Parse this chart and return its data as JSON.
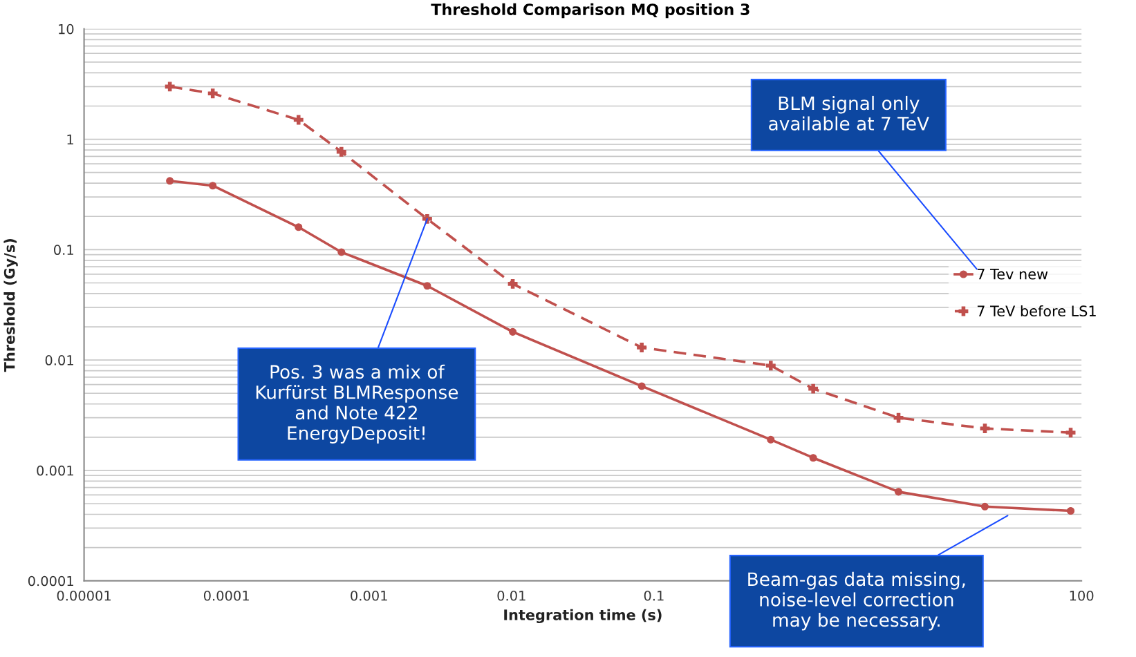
{
  "chart_data": {
    "type": "line",
    "title": "Threshold Comparison MQ position 3",
    "xlabel": "Integration time (s)",
    "ylabel": "Threshold (Gy/s)",
    "x": [
      4e-05,
      8e-05,
      0.00032,
      0.00064,
      0.00256,
      0.0102,
      0.082,
      0.66,
      1.31,
      5.2,
      21,
      84
    ],
    "series": [
      {
        "name": "7 Tev new",
        "color": "#c0504d",
        "marker": "circle",
        "line_style": "solid",
        "values": [
          0.42,
          0.38,
          0.16,
          0.095,
          0.047,
          0.018,
          0.0058,
          0.0019,
          0.0013,
          0.00064,
          0.00047,
          0.00043
        ]
      },
      {
        "name": "7 TeV before LS1",
        "color": "#c0504d",
        "marker": "cross",
        "line_style": "dashed",
        "values": [
          3.0,
          2.6,
          1.5,
          0.77,
          0.19,
          0.049,
          0.013,
          0.0089,
          0.0055,
          0.003,
          0.0024,
          0.0022
        ]
      }
    ],
    "log": "xy",
    "xlim": [
      1e-05,
      100
    ],
    "ylim": [
      0.0001,
      10
    ],
    "xticks": [
      {
        "value": 1e-05,
        "label": "0.00001"
      },
      {
        "value": 0.0001,
        "label": "0.0001"
      },
      {
        "value": 0.001,
        "label": "0.001"
      },
      {
        "value": 0.01,
        "label": "0.01"
      },
      {
        "value": 0.1,
        "label": "0.1"
      },
      {
        "value": 100,
        "label": "100"
      }
    ],
    "yticks": [
      {
        "value": 0.0001,
        "label": "0.0001"
      },
      {
        "value": 0.001,
        "label": "0.001"
      },
      {
        "value": 0.01,
        "label": "0.01"
      },
      {
        "value": 0.1,
        "label": "0.1"
      },
      {
        "value": 1,
        "label": "1"
      },
      {
        "value": 10,
        "label": "10"
      }
    ],
    "grid": "y",
    "legend": "right",
    "annotations": [
      "BLM signal only\navailable at 7 TeV",
      {
        "text": "Pos. 3 was a mix of\nKurfürst BLMResponse\nand Note 422\nEnergyDeposit!",
        "x": 0.00256,
        "y": 0.19
      },
      "Beam-gas data missing,\nnoise-level correction\nmay be necessary."
    ]
  }
}
